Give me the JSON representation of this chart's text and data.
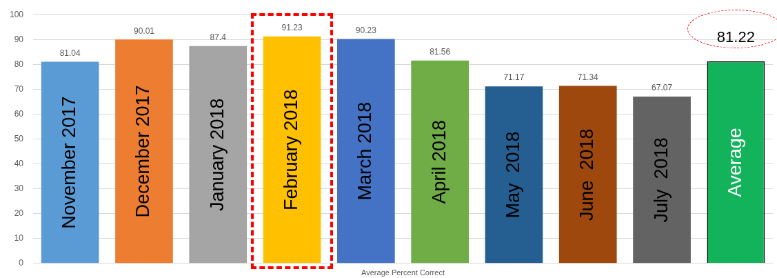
{
  "chart_data": {
    "type": "bar",
    "xlabel": "Average Percent Correct",
    "categories": [
      "November 2017",
      "December 2017",
      "January 2018",
      "February 2018",
      "March 2018",
      "April 2018",
      "May  2018",
      "June  2018",
      "July  2018",
      "Average"
    ],
    "values": [
      81.04,
      90.01,
      87.4,
      91.23,
      90.23,
      81.56,
      71.17,
      71.34,
      67.07,
      81.22
    ],
    "colors": [
      "#5b9bd5",
      "#ed7d31",
      "#a5a5a5",
      "#ffc000",
      "#4472c4",
      "#70ad47",
      "#255e91",
      "#9e480e",
      "#636363",
      "#12b35a"
    ],
    "ylim": [
      0,
      100
    ],
    "yticks": [
      0,
      10,
      20,
      30,
      40,
      50,
      60,
      70,
      80,
      90,
      100
    ],
    "grid": "y",
    "data_labels": true,
    "legend": false
  }
}
